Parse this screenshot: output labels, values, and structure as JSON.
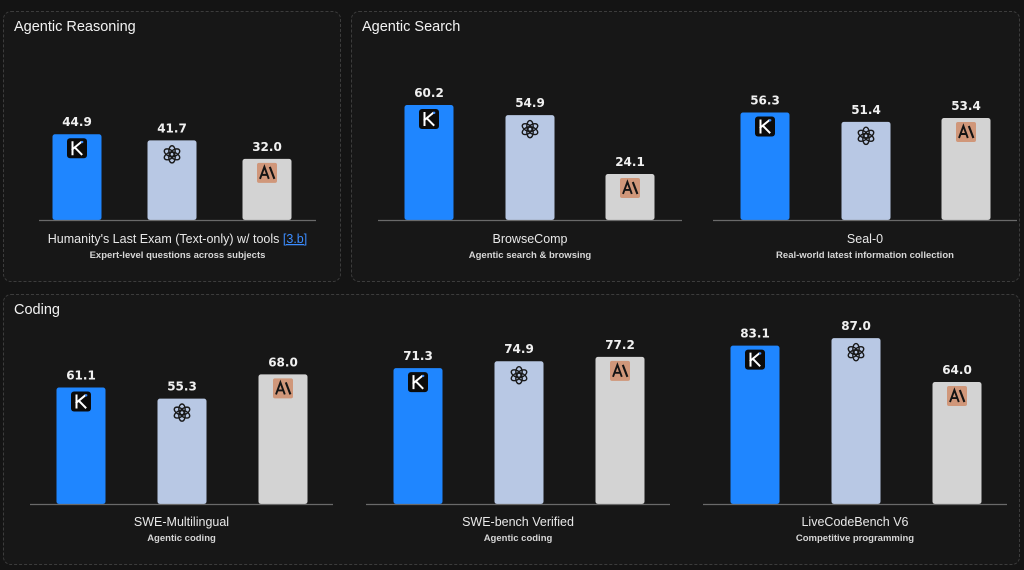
{
  "colors": {
    "kimi": "#1f86ff",
    "openai": "#b8c8e4",
    "anthropic": "#d3d3d3",
    "anthropic_badge": "#d0977a",
    "link": "#3b8cff"
  },
  "icons": [
    "kimi-logo-icon",
    "openai-logo-icon",
    "anthropic-logo-icon"
  ],
  "panels": [
    {
      "title": "Agentic Reasoning"
    },
    {
      "title": "Agentic Search"
    },
    {
      "title": "Coding"
    }
  ],
  "chart_data": [
    {
      "type": "bar",
      "panel": 0,
      "categories": [
        "K",
        "OpenAI",
        "A\\"
      ],
      "values": [
        44.9,
        41.7,
        32.0
      ],
      "value_labels": [
        "44.9",
        "41.7",
        "32.0"
      ],
      "name": "Humanity's Last Exam (Text-only) w/ tools",
      "link_text": "[3.b]",
      "subtitle": "Expert-level questions across subjects"
    },
    {
      "type": "bar",
      "panel": 1,
      "categories": [
        "K",
        "OpenAI",
        "A\\"
      ],
      "values": [
        60.2,
        54.9,
        24.1
      ],
      "value_labels": [
        "60.2",
        "54.9",
        "24.1"
      ],
      "name": "BrowseComp",
      "link_text": "",
      "subtitle": "Agentic search & browsing"
    },
    {
      "type": "bar",
      "panel": 1,
      "categories": [
        "K",
        "OpenAI",
        "A\\"
      ],
      "values": [
        56.3,
        51.4,
        53.4
      ],
      "value_labels": [
        "56.3",
        "51.4",
        "53.4"
      ],
      "name": "Seal-0",
      "link_text": "",
      "subtitle": "Real-world latest information collection"
    },
    {
      "type": "bar",
      "panel": 2,
      "categories": [
        "K",
        "OpenAI",
        "A\\"
      ],
      "values": [
        61.1,
        55.3,
        68.0
      ],
      "value_labels": [
        "61.1",
        "55.3",
        "68.0"
      ],
      "name": "SWE-Multilingual",
      "link_text": "",
      "subtitle": "Agentic coding"
    },
    {
      "type": "bar",
      "panel": 2,
      "categories": [
        "K",
        "OpenAI",
        "A\\"
      ],
      "values": [
        71.3,
        74.9,
        77.2
      ],
      "value_labels": [
        "71.3",
        "74.9",
        "77.2"
      ],
      "name": "SWE-bench Verified",
      "link_text": "",
      "subtitle": "Agentic coding"
    },
    {
      "type": "bar",
      "panel": 2,
      "categories": [
        "K",
        "OpenAI",
        "A\\"
      ],
      "values": [
        83.1,
        87.0,
        64.0
      ],
      "value_labels": [
        "83.1",
        "87.0",
        "64.0"
      ],
      "name": "LiveCodeBench V6",
      "link_text": "",
      "subtitle": "Competitive programming"
    }
  ]
}
